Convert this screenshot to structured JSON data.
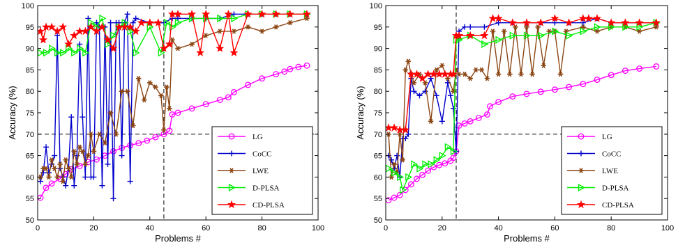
{
  "chart_data": [
    {
      "type": "line",
      "xlabel": "Problems #",
      "ylabel": "Accuracy (%)",
      "xlim": [
        0,
        100
      ],
      "ylim": [
        50,
        100
      ],
      "xticks": [
        "0",
        "20",
        "40",
        "60",
        "80",
        "100"
      ],
      "yticks": [
        "50",
        "55",
        "60",
        "65",
        "70",
        "75",
        "80",
        "85",
        "90",
        "95",
        "100"
      ],
      "grid": false,
      "legend_position": "bottom-right",
      "reference_lines": {
        "vertical_x": 45,
        "horizontal_y": 70
      },
      "series": [
        {
          "name": "LG",
          "color": "#ff00ff",
          "marker": "circle",
          "x": [
            1,
            3,
            5,
            8,
            10,
            12,
            15,
            18,
            21,
            24,
            27,
            30,
            33,
            36,
            39,
            42,
            45,
            47,
            48,
            50,
            55,
            60,
            65,
            68,
            70,
            75,
            80,
            85,
            88,
            90,
            93,
            96
          ],
          "y": [
            55.2,
            57.5,
            58.5,
            59.6,
            60.7,
            61.8,
            62.6,
            63.5,
            64.1,
            65.0,
            66.0,
            66.8,
            67.4,
            67.9,
            68.5,
            69.3,
            70.0,
            70.8,
            74.6,
            75.0,
            76.0,
            77.0,
            78.0,
            78.6,
            79.8,
            81.5,
            83.0,
            84.0,
            84.6,
            85.2,
            85.7,
            86.0
          ]
        },
        {
          "name": "CoCC",
          "color": "#0000cc",
          "marker": "plus",
          "x": [
            1,
            2,
            3,
            4,
            5,
            6,
            7,
            8,
            9,
            10,
            11,
            12,
            13,
            14,
            15,
            16,
            17,
            18,
            19,
            20,
            21,
            22,
            23,
            24,
            25,
            26,
            27,
            28,
            29,
            30,
            31,
            32,
            33,
            34,
            35,
            40,
            45,
            48,
            50,
            55,
            60,
            65,
            70,
            75,
            80,
            85,
            90,
            96
          ],
          "y": [
            59,
            61,
            67,
            61,
            63,
            65,
            93,
            62,
            60,
            58,
            62,
            74,
            58,
            65,
            91,
            74,
            60,
            97,
            60,
            60,
            96,
            95,
            58,
            95,
            63,
            96,
            55,
            96,
            96,
            65,
            96,
            98,
            59,
            96,
            97,
            96,
            96,
            97,
            97,
            97,
            97,
            97,
            98,
            98,
            98,
            98,
            98,
            98
          ]
        },
        {
          "name": "LWE",
          "color": "#8b4513",
          "marker": "star6",
          "x": [
            1,
            2,
            3,
            4,
            5,
            6,
            7,
            8,
            9,
            10,
            11,
            12,
            13,
            14,
            15,
            16,
            17,
            18,
            19,
            20,
            22,
            24,
            26,
            28,
            30,
            32,
            34,
            36,
            38,
            40,
            42,
            44,
            45,
            46,
            47,
            48,
            50,
            55,
            60,
            65,
            70,
            75,
            80,
            85,
            90,
            96
          ],
          "y": [
            60,
            62,
            62,
            60,
            64,
            62,
            60,
            63,
            59,
            64,
            62,
            60,
            66,
            63,
            67,
            66,
            63,
            65,
            70,
            66,
            70,
            68,
            75,
            70,
            80,
            80,
            72,
            83,
            78,
            82,
            81,
            79,
            71,
            81,
            76,
            92,
            90,
            91,
            93,
            94,
            94,
            95,
            94,
            95,
            96,
            97
          ]
        },
        {
          "name": "D-PLSA",
          "color": "#00ee00",
          "marker": "triangle",
          "x": [
            1,
            3,
            5,
            7,
            9,
            11,
            13,
            15,
            17,
            19,
            21,
            23,
            25,
            27,
            29,
            31,
            33,
            35,
            40,
            44,
            46,
            48,
            50,
            55,
            60,
            65,
            70,
            75,
            80,
            85,
            90,
            96
          ],
          "y": [
            89,
            89,
            90,
            89,
            89,
            90,
            89,
            90,
            89,
            96,
            95,
            97,
            91,
            93,
            95,
            96,
            94,
            89,
            95,
            89,
            96,
            95,
            96,
            97,
            97,
            97,
            97,
            98,
            98,
            98,
            98,
            98
          ]
        },
        {
          "name": "CD-PLSA",
          "color": "#ff0000",
          "marker": "star5",
          "x": [
            1,
            2,
            3,
            5,
            7,
            9,
            11,
            13,
            15,
            17,
            19,
            21,
            23,
            25,
            27,
            29,
            31,
            33,
            35,
            37,
            40,
            43,
            45,
            47,
            48,
            50,
            55,
            58,
            60,
            65,
            68,
            70,
            75,
            80,
            85,
            90,
            96
          ],
          "y": [
            94,
            92,
            95,
            95,
            94,
            95,
            91,
            93,
            94,
            94,
            95,
            94,
            95,
            92,
            90,
            95,
            95,
            95,
            94,
            96,
            96,
            96,
            90,
            91,
            98,
            98,
            98,
            89,
            98,
            90,
            98,
            89,
            98,
            98,
            98,
            98,
            98
          ]
        }
      ]
    },
    {
      "type": "line",
      "xlabel": "Problems #",
      "ylabel": "Accuracy (%)",
      "xlim": [
        0,
        100
      ],
      "ylim": [
        50,
        100
      ],
      "xticks": [
        "0",
        "20",
        "40",
        "60",
        "80",
        "100"
      ],
      "yticks": [
        "50",
        "55",
        "60",
        "65",
        "70",
        "75",
        "80",
        "85",
        "90",
        "95",
        "100"
      ],
      "grid": false,
      "legend_position": "bottom-right",
      "reference_lines": {
        "vertical_x": 25,
        "horizontal_y": 70
      },
      "series": [
        {
          "name": "LG",
          "color": "#ff00ff",
          "marker": "circle",
          "x": [
            1,
            3,
            5,
            7,
            9,
            11,
            13,
            15,
            17,
            19,
            21,
            23,
            24,
            25,
            26,
            28,
            30,
            33,
            36,
            37,
            40,
            45,
            50,
            55,
            60,
            65,
            70,
            75,
            80,
            85,
            90,
            96
          ],
          "y": [
            54.6,
            55.2,
            55.8,
            57.0,
            58.3,
            59.6,
            60.5,
            61.5,
            62.3,
            62.8,
            63.2,
            63.8,
            64.5,
            66.0,
            72.0,
            72.5,
            73.0,
            73.8,
            74.6,
            76.5,
            77.5,
            78.8,
            79.4,
            79.9,
            80.4,
            81.0,
            81.7,
            82.7,
            83.8,
            84.8,
            85.3,
            85.8
          ]
        },
        {
          "name": "CoCC",
          "color": "#0000cc",
          "marker": "plus",
          "x": [
            1,
            2,
            3,
            4,
            5,
            6,
            7,
            8,
            9,
            10,
            12,
            14,
            16,
            18,
            20,
            22,
            23,
            24,
            25,
            26,
            28,
            30,
            35,
            40,
            45,
            50,
            55,
            60,
            65,
            70,
            75,
            80,
            85,
            90,
            96
          ],
          "y": [
            65,
            64,
            62,
            65,
            60,
            69,
            69,
            70,
            83,
            80,
            79,
            80,
            83,
            79,
            73,
            82,
            79,
            76,
            66,
            94,
            95,
            95,
            95,
            96,
            96,
            96,
            96,
            96,
            96,
            96,
            97,
            96,
            96,
            96,
            96
          ]
        },
        {
          "name": "LWE",
          "color": "#8b4513",
          "marker": "star6",
          "x": [
            1,
            2,
            3,
            4,
            5,
            6,
            7,
            8,
            9,
            10,
            12,
            14,
            16,
            18,
            20,
            22,
            24,
            25,
            26,
            28,
            30,
            32,
            34,
            36,
            38,
            40,
            42,
            44,
            46,
            48,
            50,
            52,
            54,
            56,
            58,
            60,
            62,
            64,
            70,
            75,
            80,
            85,
            90,
            96
          ],
          "y": [
            70,
            60,
            63,
            61,
            70,
            64,
            85,
            87,
            84,
            82,
            84,
            82,
            73,
            85,
            86,
            83,
            80,
            85,
            84,
            84,
            83,
            85,
            85,
            83,
            94,
            84,
            94,
            84,
            95,
            84,
            95,
            84,
            95,
            86,
            94,
            94,
            84,
            94,
            95,
            94,
            95,
            95,
            94,
            95
          ]
        },
        {
          "name": "D-PLSA",
          "color": "#00ee00",
          "marker": "triangle",
          "x": [
            1,
            3,
            5,
            6,
            8,
            10,
            12,
            14,
            16,
            18,
            20,
            22,
            24,
            25,
            26,
            30,
            35,
            40,
            45,
            50,
            55,
            60,
            65,
            70,
            75,
            80,
            85,
            90,
            96
          ],
          "y": [
            62,
            61,
            60,
            57,
            60,
            63,
            62,
            63,
            63,
            64,
            65,
            67,
            66,
            92,
            92,
            93,
            91,
            92,
            93,
            93,
            93,
            94,
            93,
            94,
            95,
            95,
            95,
            95,
            96
          ]
        },
        {
          "name": "CD-PLSA",
          "color": "#ff0000",
          "marker": "star5",
          "x": [
            1,
            3,
            5,
            7,
            9,
            11,
            13,
            15,
            17,
            19,
            21,
            23,
            24,
            25,
            26,
            30,
            35,
            38,
            40,
            45,
            50,
            55,
            60,
            65,
            70,
            72,
            75,
            80,
            85,
            90,
            96
          ],
          "y": [
            71.5,
            71.5,
            71,
            71,
            84,
            84,
            83,
            84,
            84,
            84,
            84,
            84,
            84,
            93,
            93,
            93,
            93,
            97,
            97,
            96,
            96,
            96,
            97,
            96,
            97,
            97,
            97,
            96,
            96,
            96,
            96
          ]
        }
      ]
    }
  ]
}
